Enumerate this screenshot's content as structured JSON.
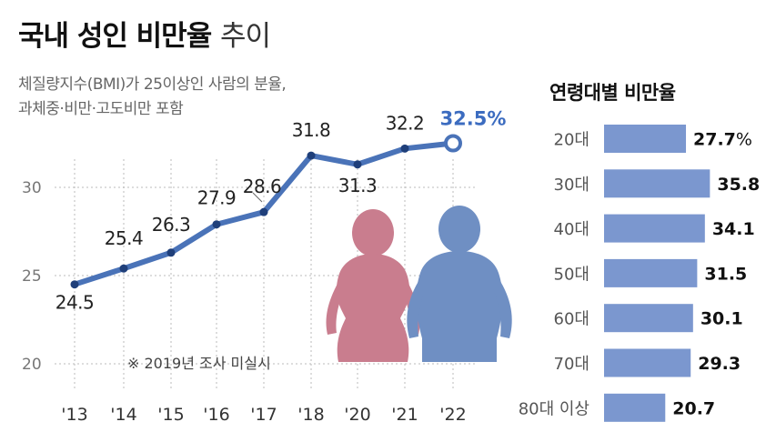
{
  "title": {
    "bold": "국내 성인 비만율",
    "light": "추이"
  },
  "subtitle": [
    "체질량지수(BMI)가 25이상인 사람의 분율,",
    "과체중·비만·고도비만 포함"
  ],
  "note": "※ 2019년 조사 미실시",
  "right_title": "연령대별 비만율",
  "colors": {
    "line": "#4a73b8",
    "bar": "#7b97cf",
    "female": "#c97d8e",
    "male": "#6f8fc3",
    "grid": "#bbbbbb"
  },
  "chart_data": [
    {
      "type": "line",
      "x": [
        "'13",
        "'14",
        "'15",
        "'16",
        "'17",
        "'18",
        "'20",
        "'21",
        "'22"
      ],
      "values": [
        24.5,
        25.4,
        26.3,
        27.9,
        28.6,
        31.8,
        31.3,
        32.2,
        32.5
      ],
      "data_labels": [
        "24.5",
        "25.4",
        "26.3",
        "27.9",
        "28.6",
        "31.8",
        "31.3",
        "32.2",
        "32.5%"
      ],
      "ylim": [
        20,
        33
      ],
      "yticks": [
        20,
        25,
        30
      ],
      "grid": true
    },
    {
      "type": "bar",
      "orientation": "horizontal",
      "categories": [
        "20대",
        "30대",
        "40대",
        "50대",
        "60대",
        "70대",
        "80대 이상"
      ],
      "values": [
        27.7,
        35.8,
        34.1,
        31.5,
        30.1,
        29.3,
        20.7
      ],
      "value_labels": [
        "27.7",
        "35.8",
        "34.1",
        "31.5",
        "30.1",
        "29.3",
        "20.7"
      ],
      "unit_on_first": "%"
    }
  ]
}
